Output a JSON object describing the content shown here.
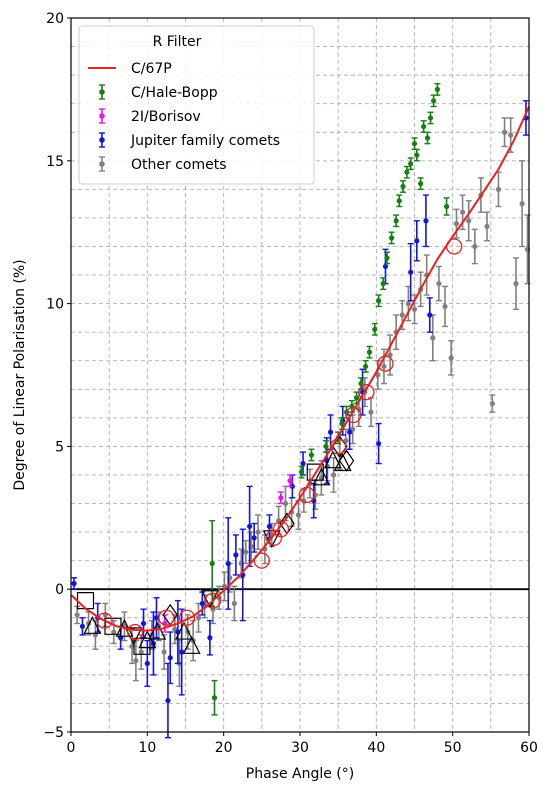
{
  "chart_data": {
    "type": "scatter",
    "title": "",
    "xlabel": "Phase Angle (°)",
    "ylabel": "Degree of Linear Polarisation (%)",
    "xlim": [
      0,
      60
    ],
    "ylim": [
      -5,
      20
    ],
    "x_ticks": [
      0,
      10,
      20,
      30,
      40,
      50,
      60
    ],
    "y_ticks": [
      -5,
      0,
      5,
      10,
      15,
      20
    ],
    "x_minor_step": 5,
    "y_minor_step": 1,
    "grid": true,
    "legend": {
      "title": "R Filter",
      "placement": "top-left",
      "entries": [
        "C/67P",
        "C/Hale-Bopp",
        "2I/Borisov",
        "Jupiter family comets",
        "Other comets"
      ]
    },
    "colors": {
      "C/67P": "#e8201e",
      "C/Hale-Bopp": "#138013",
      "2I/Borisov": "#ee11ee",
      "Jupiter family comets": "#1414e0",
      "Other comets": "#808080"
    },
    "series": [
      {
        "name": "C/67P",
        "kind": "line",
        "x": [
          0,
          2,
          4,
          6,
          8,
          10,
          12,
          14,
          16,
          18,
          20,
          22,
          24,
          26,
          28,
          30,
          32,
          34,
          36,
          38,
          40,
          42,
          44,
          46,
          48,
          50,
          52,
          54,
          56,
          58,
          60
        ],
        "y": [
          -0.2,
          -0.7,
          -1.05,
          -1.3,
          -1.42,
          -1.45,
          -1.38,
          -1.2,
          -0.95,
          -0.55,
          -0.05,
          0.45,
          1.05,
          1.7,
          2.4,
          3.2,
          4.05,
          4.9,
          5.8,
          6.7,
          7.6,
          8.6,
          9.6,
          10.6,
          11.55,
          12.35,
          13.1,
          13.9,
          14.7,
          15.7,
          16.9
        ]
      },
      {
        "name": "C/Hale-Bopp",
        "kind": "errorbar",
        "x": [
          18.5,
          18.8,
          30.2,
          31.5,
          33.4,
          35.0,
          35.5,
          36.1,
          36.8,
          37.4,
          38.0,
          38.6,
          39.1,
          39.8,
          40.3,
          40.9,
          41.4,
          42.0,
          42.6,
          43.0,
          43.5,
          44.0,
          44.5,
          45.0,
          45.3,
          45.8,
          46.2,
          46.7,
          47.1,
          47.5,
          48.0,
          49.2
        ],
        "y": [
          0.9,
          -3.8,
          4.1,
          4.7,
          5.0,
          5.3,
          5.8,
          6.2,
          6.4,
          6.7,
          7.2,
          7.8,
          8.3,
          9.1,
          10.1,
          10.7,
          11.6,
          12.3,
          12.9,
          13.6,
          14.1,
          14.6,
          14.9,
          15.6,
          15.2,
          14.2,
          16.2,
          15.8,
          16.5,
          17.1,
          17.5,
          13.4
        ],
        "err": [
          1.5,
          0.6,
          0.2,
          0.2,
          0.2,
          0.2,
          0.2,
          0.2,
          0.2,
          0.2,
          0.2,
          0.2,
          0.2,
          0.2,
          0.2,
          0.2,
          0.2,
          0.2,
          0.2,
          0.2,
          0.2,
          0.2,
          0.2,
          0.2,
          0.2,
          0.2,
          0.2,
          0.2,
          0.2,
          0.2,
          0.2,
          0.3
        ]
      },
      {
        "name": "2I/Borisov",
        "kind": "errorbar",
        "x": [
          12.3,
          27.5,
          28.7
        ],
        "y": [
          -1.2,
          3.2,
          3.8
        ],
        "err": [
          0.3,
          0.2,
          0.2
        ]
      },
      {
        "name": "Jupiter family comets",
        "kind": "errorbar",
        "x": [
          0.4,
          1.5,
          3.5,
          6.5,
          9.5,
          10.0,
          10.8,
          11.2,
          12.7,
          13.0,
          14.0,
          14.5,
          17.2,
          18.2,
          20.6,
          21.6,
          22.5,
          23.4,
          24.0,
          26.0,
          29.0,
          30.4,
          31.8,
          33.5,
          34.0,
          35.6,
          36.5,
          38.2,
          40.3,
          41.2,
          44.5,
          45.3,
          46.5,
          47.0,
          59.6
        ],
        "y": [
          0.2,
          -1.3,
          -1.0,
          -1.7,
          -1.2,
          -2.6,
          -1.9,
          -1.0,
          -3.9,
          -2.4,
          -1.5,
          -2.2,
          -0.5,
          -1.7,
          0.9,
          1.2,
          0.5,
          2.2,
          1.8,
          2.2,
          3.6,
          4.4,
          3.1,
          4.5,
          5.5,
          5.9,
          5.5,
          6.9,
          5.1,
          11.3,
          11.1,
          12.2,
          12.9,
          9.6,
          16.5
        ],
        "err": [
          0.2,
          0.3,
          0.5,
          0.4,
          0.5,
          0.8,
          1.1,
          0.7,
          1.3,
          0.9,
          1.1,
          1.5,
          0.4,
          0.6,
          1.6,
          0.7,
          1.6,
          1.4,
          0.5,
          0.4,
          0.4,
          0.4,
          0.6,
          0.8,
          0.6,
          0.5,
          0.6,
          0.8,
          0.7,
          0.6,
          1.0,
          0.7,
          0.9,
          0.6,
          0.6
        ]
      },
      {
        "name": "Other comets",
        "kind": "errorbar",
        "x": [
          0.8,
          2.3,
          3.2,
          4.5,
          5.6,
          7.0,
          8.0,
          8.5,
          9.2,
          10.6,
          11.5,
          12.2,
          13.6,
          14.2,
          15.3,
          16.0,
          16.7,
          17.5,
          18.6,
          19.4,
          20.1,
          20.8,
          21.4,
          22.3,
          22.9,
          23.6,
          24.5,
          25.4,
          26.3,
          27.2,
          28.1,
          28.9,
          29.8,
          30.5,
          31.3,
          32.0,
          32.8,
          33.6,
          34.4,
          35.2,
          36.0,
          36.9,
          37.7,
          38.5,
          39.3,
          40.2,
          41.0,
          41.8,
          42.6,
          43.4,
          44.2,
          45.0,
          45.8,
          46.6,
          47.4,
          48.2,
          49.0,
          49.8,
          50.5,
          51.3,
          52.1,
          52.9,
          53.7,
          54.5,
          55.2,
          56.0,
          56.8,
          57.6,
          58.3,
          59.1,
          59.8
        ],
        "y": [
          -0.9,
          -1.2,
          -1.6,
          -0.9,
          -1.5,
          -1.3,
          -2.0,
          -2.5,
          -2.2,
          -1.6,
          -1.3,
          -2.2,
          -1.4,
          -2.6,
          -1.5,
          -1.8,
          -1.0,
          -0.6,
          -0.7,
          -0.3,
          0.1,
          0.4,
          -0.5,
          0.9,
          1.3,
          1.5,
          2.0,
          1.4,
          1.9,
          2.4,
          3.0,
          2.7,
          2.6,
          3.1,
          3.7,
          3.3,
          3.9,
          4.3,
          4.0,
          4.7,
          5.2,
          5.6,
          6.3,
          6.9,
          6.2,
          7.5,
          7.8,
          8.2,
          9.0,
          9.6,
          10.0,
          9.8,
          10.5,
          11.0,
          8.8,
          10.7,
          9.9,
          8.1,
          12.8,
          13.2,
          12.9,
          12.0,
          13.8,
          12.7,
          6.5,
          14.0,
          16.0,
          15.9,
          10.7,
          13.5,
          11.9
        ],
        "err": [
          0.3,
          0.4,
          0.5,
          0.4,
          0.4,
          0.5,
          0.6,
          0.7,
          0.6,
          0.5,
          0.5,
          0.6,
          0.5,
          0.8,
          0.6,
          0.7,
          0.5,
          0.4,
          0.5,
          0.4,
          0.5,
          0.5,
          0.6,
          0.5,
          0.4,
          0.5,
          0.6,
          0.5,
          0.4,
          0.5,
          0.6,
          0.5,
          0.5,
          0.4,
          0.5,
          0.5,
          0.6,
          0.5,
          0.6,
          0.5,
          0.4,
          0.5,
          0.6,
          0.5,
          0.5,
          0.5,
          0.6,
          0.7,
          0.6,
          0.5,
          0.6,
          0.5,
          0.6,
          0.7,
          0.8,
          0.6,
          0.7,
          0.6,
          0.5,
          0.6,
          0.7,
          0.6,
          0.6,
          0.5,
          0.3,
          0.6,
          0.5,
          0.6,
          0.9,
          1.5,
          1.2
        ]
      },
      {
        "name": "C/67P circles",
        "kind": "open-circle",
        "color": "#e8201e",
        "x": [
          4.4,
          8.4,
          12.5,
          15.2,
          18.6,
          25.0,
          26.6,
          27.5,
          30.9,
          35.0,
          37.0,
          38.7,
          41.2,
          50.2
        ],
        "y": [
          -1.1,
          -1.5,
          -1.0,
          -1.0,
          -0.4,
          1.0,
          1.8,
          2.1,
          3.3,
          5.0,
          6.1,
          6.9,
          7.9,
          12.0
        ]
      },
      {
        "name": "marker overlay",
        "kind": "black-markers",
        "points": [
          {
            "x": 1.9,
            "y": -0.4,
            "m": "square"
          },
          {
            "x": 2.8,
            "y": -1.3,
            "m": "triangle"
          },
          {
            "x": 5.5,
            "y": -1.3,
            "m": "square"
          },
          {
            "x": 7.0,
            "y": -1.4,
            "m": "triangle"
          },
          {
            "x": 8.2,
            "y": -1.6,
            "m": "triangle-down"
          },
          {
            "x": 9.3,
            "y": -2.0,
            "m": "square"
          },
          {
            "x": 10.0,
            "y": -1.8,
            "m": "triangle"
          },
          {
            "x": 11.3,
            "y": -1.5,
            "m": "triangle"
          },
          {
            "x": 13.0,
            "y": -0.9,
            "m": "diamond"
          },
          {
            "x": 14.8,
            "y": -1.5,
            "m": "triangle"
          },
          {
            "x": 15.8,
            "y": -2.0,
            "m": "triangle"
          },
          {
            "x": 18.2,
            "y": -0.3,
            "m": "triangle-down"
          },
          {
            "x": 26.3,
            "y": 1.8,
            "m": "triangle-down"
          },
          {
            "x": 28.3,
            "y": 2.3,
            "m": "diamond"
          },
          {
            "x": 32.0,
            "y": 4.1,
            "m": "square"
          },
          {
            "x": 32.8,
            "y": 3.9,
            "m": "triangle"
          },
          {
            "x": 34.3,
            "y": 4.5,
            "m": "triangle"
          },
          {
            "x": 35.2,
            "y": 5.0,
            "m": "diamond"
          },
          {
            "x": 35.6,
            "y": 4.4,
            "m": "triangle"
          },
          {
            "x": 36.1,
            "y": 4.5,
            "m": "diamond"
          }
        ]
      }
    ]
  }
}
